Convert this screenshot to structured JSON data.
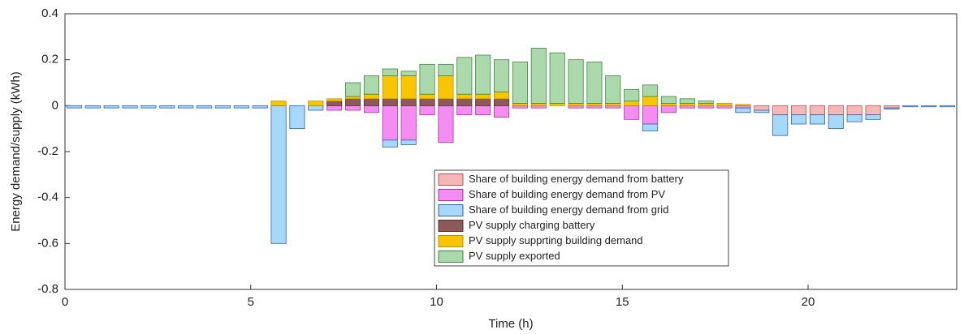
{
  "chart_data": {
    "type": "stacked-bar",
    "xlabel": "Time (h)",
    "ylabel": "Energy demand/supply (kWh)",
    "xlim": [
      0,
      24
    ],
    "xticks": [
      0,
      5,
      10,
      15,
      20
    ],
    "ylim": [
      -0.8,
      0.4
    ],
    "yticks": [
      0.4,
      0.2,
      0,
      -0.2,
      -0.4,
      -0.6,
      -0.8
    ],
    "x": [
      0.25,
      0.75,
      1.25,
      1.75,
      2.25,
      2.75,
      3.25,
      3.75,
      4.25,
      4.75,
      5.25,
      5.75,
      6.25,
      6.75,
      7.25,
      7.75,
      8.25,
      8.75,
      9.25,
      9.75,
      10.25,
      10.75,
      11.25,
      11.75,
      12.25,
      12.75,
      13.25,
      13.75,
      14.25,
      14.75,
      15.25,
      15.75,
      16.25,
      16.75,
      17.25,
      17.75,
      18.25,
      18.75,
      19.25,
      19.75,
      20.25,
      20.75,
      21.25,
      21.75,
      22.25,
      22.75,
      23.25,
      23.75
    ],
    "series": [
      {
        "name": "Share of building energy demand from battery",
        "color": "#f5b8b8",
        "edge": "#c05050",
        "values": [
          0,
          0,
          0,
          0,
          0,
          0,
          0,
          0,
          0,
          0,
          0,
          0,
          0,
          0,
          0,
          0,
          0,
          0,
          0,
          0,
          0,
          0,
          0,
          0,
          0,
          0,
          0,
          0,
          0,
          0,
          0,
          0,
          0,
          0,
          0,
          0,
          0,
          -0.02,
          -0.04,
          -0.04,
          -0.04,
          -0.04,
          -0.04,
          -0.04,
          -0.01,
          0,
          0,
          0
        ]
      },
      {
        "name": "Share of building energy demand from PV",
        "color": "#f58cf2",
        "edge": "#b030b0",
        "values": [
          0,
          0,
          0,
          0,
          0,
          0,
          0,
          0,
          0,
          0,
          0,
          0,
          0,
          0,
          -0.02,
          -0.02,
          -0.03,
          -0.15,
          -0.15,
          -0.04,
          -0.16,
          -0.04,
          -0.04,
          -0.05,
          -0.01,
          -0.01,
          0,
          -0.01,
          -0.01,
          -0.01,
          -0.06,
          -0.08,
          -0.03,
          -0.01,
          -0.01,
          -0.01,
          -0.01,
          0,
          0,
          0,
          0,
          0,
          0,
          0,
          0,
          0,
          0,
          0
        ]
      },
      {
        "name": "Share of building energy demand from grid",
        "color": "#a6d8f7",
        "edge": "#2f5fc0",
        "values": [
          -0.01,
          -0.01,
          -0.01,
          -0.01,
          -0.01,
          -0.01,
          -0.01,
          -0.01,
          -0.01,
          -0.01,
          -0.01,
          -0.6,
          -0.1,
          -0.02,
          0,
          0,
          0,
          -0.03,
          -0.02,
          0,
          0,
          0,
          0,
          0,
          0,
          0,
          0,
          0,
          0,
          0,
          0,
          -0.03,
          0,
          0,
          0,
          0,
          -0.02,
          -0.01,
          -0.09,
          -0.04,
          -0.04,
          -0.06,
          -0.03,
          -0.02,
          -0.005,
          -0.005,
          -0.005,
          -0.005
        ]
      },
      {
        "name": "PV supply charging battery",
        "color": "#8c5a5a",
        "edge": "#5a3030",
        "values": [
          0,
          0,
          0,
          0,
          0,
          0,
          0,
          0,
          0,
          0,
          0,
          0,
          0,
          0,
          0.02,
          0.03,
          0.03,
          0.03,
          0.03,
          0.03,
          0.03,
          0.03,
          0.03,
          0.03,
          0,
          0,
          0,
          0,
          0,
          0,
          0,
          0,
          0,
          0,
          0,
          0,
          0,
          0,
          0,
          0,
          0,
          0,
          0,
          0,
          0,
          0,
          0,
          0
        ]
      },
      {
        "name": "PV supply supprting building demand",
        "color": "#f7c600",
        "edge": "#c09000",
        "values": [
          0,
          0,
          0,
          0,
          0,
          0,
          0,
          0,
          0,
          0,
          0,
          0.02,
          0,
          0.02,
          0.01,
          0.01,
          0.02,
          0.1,
          0.1,
          0.02,
          0.1,
          0.02,
          0.02,
          0.03,
          0.01,
          0.01,
          0.01,
          0.01,
          0.01,
          0.01,
          0.02,
          0.04,
          0.01,
          0.01,
          0.01,
          0.01,
          0.005,
          0,
          0,
          0,
          0,
          0,
          0,
          0,
          0,
          0,
          0,
          0
        ]
      },
      {
        "name": "PV supply exported",
        "color": "#acd9ac",
        "edge": "#3a8a3a",
        "values": [
          0,
          0,
          0,
          0,
          0,
          0,
          0,
          0,
          0,
          0,
          0,
          0,
          0,
          0,
          0,
          0.06,
          0.08,
          0.03,
          0.02,
          0.13,
          0.05,
          0.16,
          0.17,
          0.14,
          0.18,
          0.24,
          0.22,
          0.19,
          0.18,
          0.12,
          0.05,
          0.05,
          0.03,
          0.02,
          0.01,
          0,
          0,
          0,
          0,
          0,
          0,
          0,
          0,
          0,
          0,
          0,
          0,
          0
        ]
      }
    ]
  }
}
